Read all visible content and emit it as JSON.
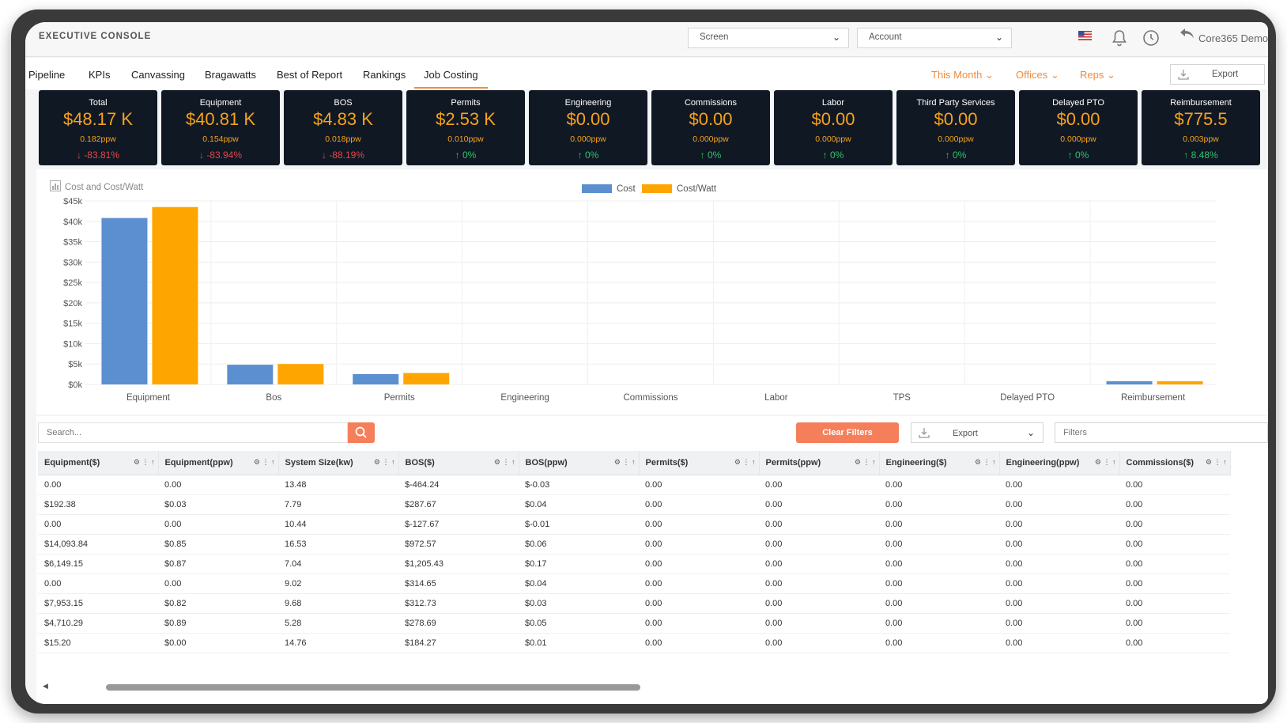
{
  "header": {
    "app_title": "EXECUTIVE CONSOLE",
    "screen_select": "Screen",
    "account_select": "Account",
    "user_name": "Core365 Demo"
  },
  "nav": {
    "tabs": [
      "Pipeline",
      "KPIs",
      "Canvassing",
      "Bragawatts",
      "Best of Report",
      "Rankings",
      "Job Costing"
    ],
    "active_tab": "Job Costing",
    "filters": [
      "This Month",
      "Offices",
      "Reps"
    ],
    "export_label": "Export"
  },
  "kpis": [
    {
      "title": "Total",
      "value": "$48.17 K",
      "ppw": "0.182ppw",
      "change": "-83.81%",
      "dir": "down"
    },
    {
      "title": "Equipment",
      "value": "$40.81 K",
      "ppw": "0.154ppw",
      "change": "-83.94%",
      "dir": "down"
    },
    {
      "title": "BOS",
      "value": "$4.83 K",
      "ppw": "0.018ppw",
      "change": "-88.19%",
      "dir": "down"
    },
    {
      "title": "Permits",
      "value": "$2.53 K",
      "ppw": "0.010ppw",
      "change": "0%",
      "dir": "up"
    },
    {
      "title": "Engineering",
      "value": "$0.00",
      "ppw": "0.000ppw",
      "change": "0%",
      "dir": "up"
    },
    {
      "title": "Commissions",
      "value": "$0.00",
      "ppw": "0.000ppw",
      "change": "0%",
      "dir": "up"
    },
    {
      "title": "Labor",
      "value": "$0.00",
      "ppw": "0.000ppw",
      "change": "0%",
      "dir": "up"
    },
    {
      "title": "Third Party Services",
      "value": "$0.00",
      "ppw": "0.000ppw",
      "change": "0%",
      "dir": "up"
    },
    {
      "title": "Delayed PTO",
      "value": "$0.00",
      "ppw": "0.000ppw",
      "change": "0%",
      "dir": "up"
    },
    {
      "title": "Reimbursement",
      "value": "$775.5",
      "ppw": "0.003ppw",
      "change": "8.48%",
      "dir": "up"
    }
  ],
  "chart_data": {
    "type": "bar",
    "title": "Cost and Cost/Watt",
    "categories": [
      "Equipment",
      "Bos",
      "Permits",
      "Engineering",
      "Commissions",
      "Labor",
      "TPS",
      "Delayed PTO",
      "Reimbursement"
    ],
    "series": [
      {
        "name": "Cost",
        "color": "#5b8fd0",
        "values": [
          40810,
          4830,
          2530,
          0,
          0,
          0,
          0,
          0,
          775
        ]
      },
      {
        "name": "Cost/Watt",
        "color": "#ffa500",
        "values": [
          43500,
          5000,
          2800,
          0,
          0,
          0,
          0,
          0,
          800
        ]
      }
    ],
    "y_ticks": [
      "$0k",
      "$5k",
      "$10k",
      "$15k",
      "$20k",
      "$25k",
      "$30k",
      "$35k",
      "$40k",
      "$45k"
    ],
    "ylim": [
      0,
      45000
    ],
    "legend_position": "top-center",
    "grid": true
  },
  "toolbar": {
    "search_placeholder": "Search...",
    "clear_filters": "Clear Filters",
    "export_label": "Export",
    "filters_placeholder": "Filters"
  },
  "table": {
    "columns": [
      "Equipment($)",
      "Equipment(ppw)",
      "System Size(kw)",
      "BOS($)",
      "BOS(ppw)",
      "Permits($)",
      "Permits(ppw)",
      "Engineering($)",
      "Engineering(ppw)",
      "Commissions($)"
    ],
    "rows": [
      [
        "0.00",
        "0.00",
        "13.48",
        "$-464.24",
        "$-0.03",
        "0.00",
        "0.00",
        "0.00",
        "0.00",
        "0.00"
      ],
      [
        "$192.38",
        "$0.03",
        "7.79",
        "$287.67",
        "$0.04",
        "0.00",
        "0.00",
        "0.00",
        "0.00",
        "0.00"
      ],
      [
        "0.00",
        "0.00",
        "10.44",
        "$-127.67",
        "$-0.01",
        "0.00",
        "0.00",
        "0.00",
        "0.00",
        "0.00"
      ],
      [
        "$14,093.84",
        "$0.85",
        "16.53",
        "$972.57",
        "$0.06",
        "0.00",
        "0.00",
        "0.00",
        "0.00",
        "0.00"
      ],
      [
        "$6,149.15",
        "$0.87",
        "7.04",
        "$1,205.43",
        "$0.17",
        "0.00",
        "0.00",
        "0.00",
        "0.00",
        "0.00"
      ],
      [
        "0.00",
        "0.00",
        "9.02",
        "$314.65",
        "$0.04",
        "0.00",
        "0.00",
        "0.00",
        "0.00",
        "0.00"
      ],
      [
        "$7,953.15",
        "$0.82",
        "9.68",
        "$312.73",
        "$0.03",
        "0.00",
        "0.00",
        "0.00",
        "0.00",
        "0.00"
      ],
      [
        "$4,710.29",
        "$0.89",
        "5.28",
        "$278.69",
        "$0.05",
        "0.00",
        "0.00",
        "0.00",
        "0.00",
        "0.00"
      ],
      [
        "$15.20",
        "$0.00",
        "14.76",
        "$184.27",
        "$0.01",
        "0.00",
        "0.00",
        "0.00",
        "0.00",
        "0.00"
      ]
    ]
  },
  "colors": {
    "accent": "#f08b3c",
    "card_bg": "#101824",
    "card_value": "#f7a21b",
    "down": "#e64545",
    "up": "#2ec36a",
    "button": "#f57f5b"
  }
}
